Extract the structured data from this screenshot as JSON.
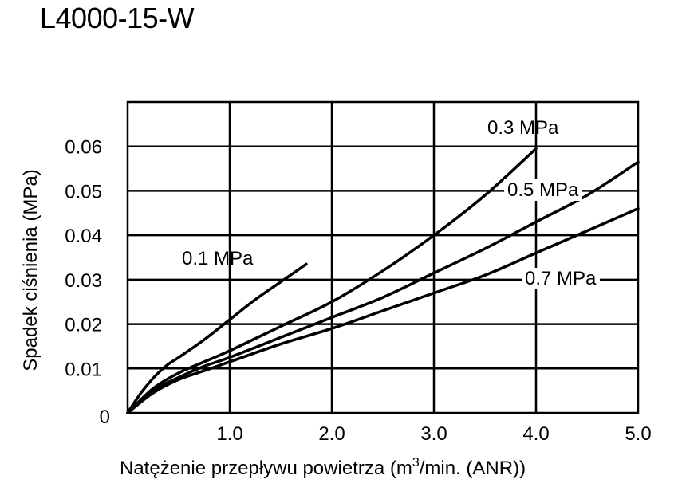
{
  "title": "L4000-15-W",
  "chart_data": {
    "type": "line",
    "xlabel_main": "Natężenie przepływu powietrza (m",
    "xlabel_sup": "3",
    "xlabel_tail": "/min. (ANR))",
    "ylabel": "Spadek ciśnienia  (MPa)",
    "xlim": [
      0,
      5.0
    ],
    "ylim": [
      0,
      0.07
    ],
    "x_ticks": [
      {
        "value": 1.0,
        "label": "1.0"
      },
      {
        "value": 2.0,
        "label": "2.0"
      },
      {
        "value": 3.0,
        "label": "3.0"
      },
      {
        "value": 4.0,
        "label": "4.0"
      },
      {
        "value": 5.0,
        "label": "5.0"
      }
    ],
    "y_ticks": [
      {
        "value": 0,
        "label": "0"
      },
      {
        "value": 0.01,
        "label": "0.01"
      },
      {
        "value": 0.02,
        "label": "0.02"
      },
      {
        "value": 0.03,
        "label": "0.03"
      },
      {
        "value": 0.04,
        "label": "0.04"
      },
      {
        "value": 0.05,
        "label": "0.05"
      },
      {
        "value": 0.06,
        "label": "0.06"
      }
    ],
    "grid": true,
    "series": [
      {
        "name": "0.1 MPa",
        "x": [
          0,
          0.1,
          0.2,
          0.3,
          0.4,
          0.5,
          0.75,
          1.0,
          1.25,
          1.5,
          1.75
        ],
        "y": [
          0,
          0.0035,
          0.0065,
          0.009,
          0.011,
          0.0125,
          0.0165,
          0.021,
          0.0255,
          0.0295,
          0.0335
        ]
      },
      {
        "name": "0.3 MPa",
        "x": [
          0,
          0.25,
          0.5,
          0.75,
          1.0,
          1.5,
          2.0,
          2.5,
          3.0,
          3.5,
          4.0
        ],
        "y": [
          0,
          0.0055,
          0.009,
          0.0115,
          0.014,
          0.0195,
          0.025,
          0.032,
          0.04,
          0.049,
          0.0595
        ]
      },
      {
        "name": "0.5 MPa",
        "x": [
          0,
          0.25,
          0.5,
          0.75,
          1.0,
          1.5,
          2.0,
          2.5,
          3.0,
          3.5,
          4.0,
          4.5,
          5.0
        ],
        "y": [
          0,
          0.005,
          0.008,
          0.0105,
          0.0125,
          0.017,
          0.0215,
          0.026,
          0.0315,
          0.037,
          0.043,
          0.049,
          0.0565
        ]
      },
      {
        "name": "0.7 MPa",
        "x": [
          0,
          0.25,
          0.5,
          0.75,
          1.0,
          1.5,
          2.0,
          2.5,
          3.0,
          3.5,
          4.0,
          4.5,
          5.0
        ],
        "y": [
          0,
          0.0045,
          0.0075,
          0.0095,
          0.0115,
          0.0155,
          0.019,
          0.023,
          0.027,
          0.031,
          0.036,
          0.041,
          0.046
        ]
      }
    ]
  }
}
